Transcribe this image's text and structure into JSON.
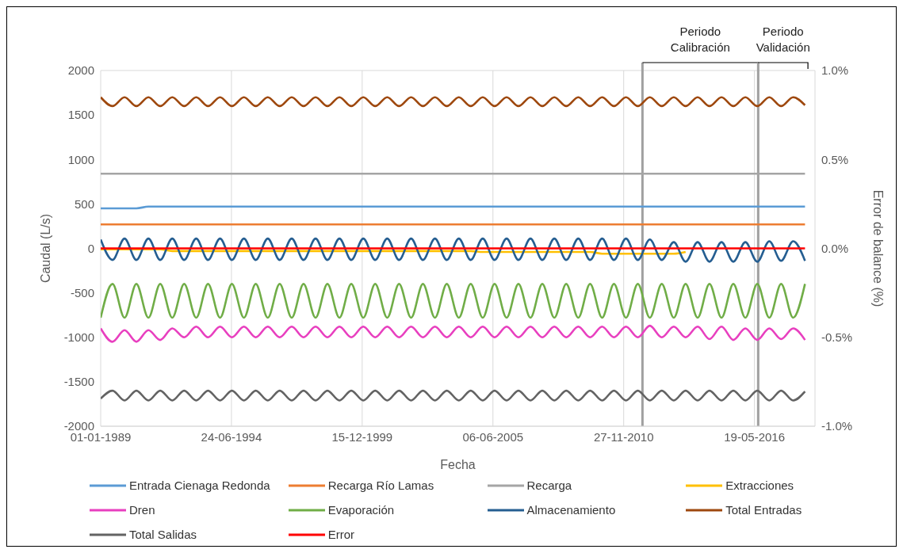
{
  "chart_data": {
    "type": "line",
    "xlabel": "Fecha",
    "ylabel": "Caudal (L/s)",
    "y2label": "Error de balance (%)",
    "x": [
      "1989-01",
      "1989-07",
      "1990-01",
      "1990-07",
      "1991-01",
      "1991-07",
      "1992-01",
      "1992-07",
      "1993-01",
      "1993-07",
      "1994-01",
      "1994-07",
      "1995-01",
      "1995-07",
      "1996-01",
      "1996-07",
      "1997-01",
      "1997-07",
      "1998-01",
      "1998-07",
      "1999-01",
      "1999-07",
      "2000-01",
      "2000-07",
      "2001-01",
      "2001-07",
      "2002-01",
      "2002-07",
      "2003-01",
      "2003-07",
      "2004-01",
      "2004-07",
      "2005-01",
      "2005-07",
      "2006-01",
      "2006-07",
      "2007-01",
      "2007-07",
      "2008-01",
      "2008-07",
      "2009-01",
      "2009-07",
      "2010-01",
      "2010-07",
      "2011-01",
      "2011-07",
      "2012-01",
      "2012-07",
      "2013-01",
      "2013-07",
      "2014-01",
      "2014-07",
      "2015-01",
      "2015-07",
      "2016-01",
      "2016-07",
      "2017-01",
      "2017-07",
      "2018-01",
      "2018-07"
    ],
    "series": [
      {
        "name": "Entrada Cienaga Redonda",
        "color": "#5b9bd5",
        "values": [
          450,
          450,
          450,
          450,
          470,
          470,
          470,
          470,
          470,
          470,
          470,
          470,
          470,
          470,
          470,
          470,
          470,
          470,
          470,
          470,
          470,
          470,
          470,
          470,
          470,
          470,
          470,
          470,
          470,
          470,
          470,
          470,
          470,
          470,
          470,
          470,
          470,
          470,
          470,
          470,
          470,
          470,
          470,
          470,
          470,
          470,
          470,
          470,
          470,
          470,
          470,
          470,
          470,
          470,
          470,
          470,
          470,
          470,
          470,
          470
        ]
      },
      {
        "name": "Recarga Río Lamas",
        "color": "#ed7d31",
        "values": [
          270,
          270,
          270,
          270,
          270,
          270,
          270,
          270,
          270,
          270,
          270,
          270,
          270,
          270,
          270,
          270,
          270,
          270,
          270,
          270,
          270,
          270,
          270,
          270,
          270,
          270,
          270,
          270,
          270,
          270,
          270,
          270,
          270,
          270,
          270,
          270,
          270,
          270,
          270,
          270,
          270,
          270,
          270,
          270,
          270,
          270,
          270,
          270,
          270,
          270,
          270,
          270,
          270,
          270,
          270,
          270,
          270,
          270,
          270,
          270
        ]
      },
      {
        "name": "Recarga",
        "color": "#a5a5a5",
        "values": [
          840,
          840,
          840,
          840,
          840,
          840,
          840,
          840,
          840,
          840,
          840,
          840,
          840,
          840,
          840,
          840,
          840,
          840,
          840,
          840,
          840,
          840,
          840,
          840,
          840,
          840,
          840,
          840,
          840,
          840,
          840,
          840,
          840,
          840,
          840,
          840,
          840,
          840,
          840,
          840,
          840,
          840,
          840,
          840,
          840,
          840,
          840,
          840,
          840,
          840,
          840,
          840,
          840,
          840,
          840,
          840,
          840,
          840,
          840,
          840
        ]
      },
      {
        "name": "Extracciones",
        "color": "#ffc000",
        "values": [
          -10,
          -10,
          -10,
          -10,
          -10,
          -10,
          -30,
          -30,
          -30,
          -30,
          -30,
          -30,
          -30,
          -30,
          -30,
          -30,
          -30,
          -30,
          -30,
          -30,
          -30,
          -30,
          -30,
          -30,
          -30,
          -30,
          -30,
          -30,
          -30,
          -30,
          -30,
          -30,
          -40,
          -40,
          -40,
          -40,
          -40,
          -40,
          -40,
          -40,
          -40,
          -40,
          -60,
          -60,
          -60,
          -60,
          -60,
          -60,
          -60,
          -40,
          null,
          null,
          null,
          null,
          null,
          null,
          null,
          null,
          null,
          null
        ]
      },
      {
        "name": "Dren",
        "color": "#e83fbf",
        "values": [
          -900,
          -1050,
          -920,
          -1050,
          -920,
          -1030,
          -900,
          -1000,
          -880,
          -1000,
          -880,
          -1000,
          -880,
          -1000,
          -880,
          -1000,
          -880,
          -1000,
          -880,
          -1000,
          -880,
          -1000,
          -880,
          -1000,
          -880,
          -1000,
          -880,
          -1000,
          -880,
          -1000,
          -880,
          -1000,
          -880,
          -1000,
          -880,
          -1000,
          -880,
          -1000,
          -880,
          -1000,
          -880,
          -1000,
          -880,
          -1000,
          -880,
          -1000,
          -870,
          -1000,
          -880,
          -1000,
          -880,
          -1020,
          -880,
          -1030,
          -900,
          -1030,
          -900,
          -1020,
          -900,
          -1030
        ]
      },
      {
        "name": "Evaporación",
        "color": "#70ad47",
        "values": [
          -780,
          -400,
          -780,
          -400,
          -780,
          -400,
          -780,
          -400,
          -780,
          -400,
          -780,
          -400,
          -780,
          -400,
          -780,
          -400,
          -780,
          -400,
          -780,
          -400,
          -780,
          -400,
          -780,
          -400,
          -780,
          -400,
          -780,
          -400,
          -780,
          -400,
          -780,
          -400,
          -780,
          -400,
          -780,
          -400,
          -780,
          -400,
          -780,
          -400,
          -780,
          -400,
          -780,
          -400,
          -780,
          -400,
          -780,
          -400,
          -780,
          -400,
          -780,
          -400,
          -780,
          -400,
          -780,
          -400,
          -780,
          -400,
          -780,
          -400
        ]
      },
      {
        "name": "Almacenamiento",
        "color": "#255e91",
        "values": [
          100,
          -130,
          110,
          -130,
          110,
          -130,
          110,
          -130,
          110,
          -130,
          110,
          -130,
          110,
          -130,
          110,
          -130,
          110,
          -130,
          110,
          -130,
          110,
          -130,
          110,
          -130,
          110,
          -130,
          110,
          -130,
          110,
          -130,
          110,
          -130,
          110,
          -130,
          110,
          -130,
          110,
          -130,
          110,
          -130,
          110,
          -130,
          110,
          -130,
          110,
          -130,
          100,
          -130,
          70,
          -150,
          70,
          -150,
          70,
          -150,
          70,
          -150,
          80,
          -140,
          80,
          -140
        ]
      },
      {
        "name": "Total Entradas",
        "color": "#9e480e",
        "values": [
          1700,
          1600,
          1700,
          1600,
          1700,
          1600,
          1700,
          1600,
          1700,
          1600,
          1700,
          1600,
          1700,
          1600,
          1700,
          1600,
          1700,
          1600,
          1700,
          1600,
          1700,
          1600,
          1700,
          1600,
          1700,
          1600,
          1700,
          1600,
          1700,
          1600,
          1700,
          1600,
          1700,
          1600,
          1700,
          1600,
          1700,
          1600,
          1700,
          1600,
          1700,
          1600,
          1700,
          1600,
          1700,
          1600,
          1700,
          1600,
          1700,
          1600,
          1700,
          1600,
          1700,
          1600,
          1700,
          1600,
          1700,
          1600,
          1700,
          1610
        ]
      },
      {
        "name": "Total Salidas",
        "color": "#636363",
        "values": [
          -1690,
          -1600,
          -1710,
          -1600,
          -1710,
          -1600,
          -1710,
          -1600,
          -1710,
          -1600,
          -1710,
          -1600,
          -1710,
          -1600,
          -1710,
          -1600,
          -1710,
          -1600,
          -1710,
          -1600,
          -1710,
          -1600,
          -1710,
          -1600,
          -1710,
          -1600,
          -1710,
          -1600,
          -1710,
          -1600,
          -1710,
          -1600,
          -1710,
          -1600,
          -1710,
          -1600,
          -1710,
          -1600,
          -1710,
          -1600,
          -1710,
          -1600,
          -1710,
          -1600,
          -1710,
          -1600,
          -1710,
          -1600,
          -1710,
          -1600,
          -1710,
          -1600,
          -1710,
          -1600,
          -1710,
          -1600,
          -1710,
          -1600,
          -1710,
          -1610
        ]
      },
      {
        "name": "Error",
        "color": "#ff0000",
        "axis": "y2",
        "values": [
          0,
          0,
          0,
          0,
          0,
          0,
          0,
          0,
          0,
          0,
          0,
          0,
          0,
          0,
          0,
          0,
          0,
          0,
          0,
          0,
          0,
          0,
          0,
          0,
          0,
          0,
          0,
          0,
          0,
          0,
          0,
          0,
          0,
          0,
          0,
          0,
          0,
          0,
          0,
          0,
          0,
          0,
          0,
          0,
          0,
          0,
          0,
          0,
          0,
          0,
          0,
          0,
          0,
          0,
          0,
          0,
          0,
          0,
          0,
          0
        ]
      }
    ],
    "xlim": [
      "1989-01-01",
      "2018-12-01"
    ],
    "xticks": [
      {
        "value": "1989-01-01",
        "label": "01-01-1989"
      },
      {
        "value": "1994-06-24",
        "label": "24-06-1994"
      },
      {
        "value": "1999-12-15",
        "label": "15-12-1999"
      },
      {
        "value": "2005-06-06",
        "label": "06-06-2005"
      },
      {
        "value": "2010-11-27",
        "label": "27-11-2010"
      },
      {
        "value": "2016-05-19",
        "label": "19-05-2016"
      }
    ],
    "ylim": [
      -2000,
      2000
    ],
    "yticks": [
      -2000,
      -1500,
      -1000,
      -500,
      0,
      500,
      1000,
      1500,
      2000
    ],
    "y2lim": [
      -1,
      1
    ],
    "y2ticks": [
      {
        "value": -1,
        "label": "-1.0%"
      },
      {
        "value": -0.5,
        "label": "-0.5%"
      },
      {
        "value": 0,
        "label": "0.0%"
      },
      {
        "value": 0.5,
        "label": "0.5%"
      },
      {
        "value": 1,
        "label": "1.0%"
      }
    ],
    "ref_lines": [
      {
        "axis": "x",
        "value": "2011-09-10",
        "label": "Periodo Calibración",
        "color": "#a0a0a0"
      },
      {
        "axis": "x",
        "value": "2016-07-15",
        "label": "Periodo Validación",
        "color": "#a0a0a0"
      }
    ],
    "grid": true,
    "legend": "bottom",
    "marker": "none",
    "line_style": "solid"
  }
}
